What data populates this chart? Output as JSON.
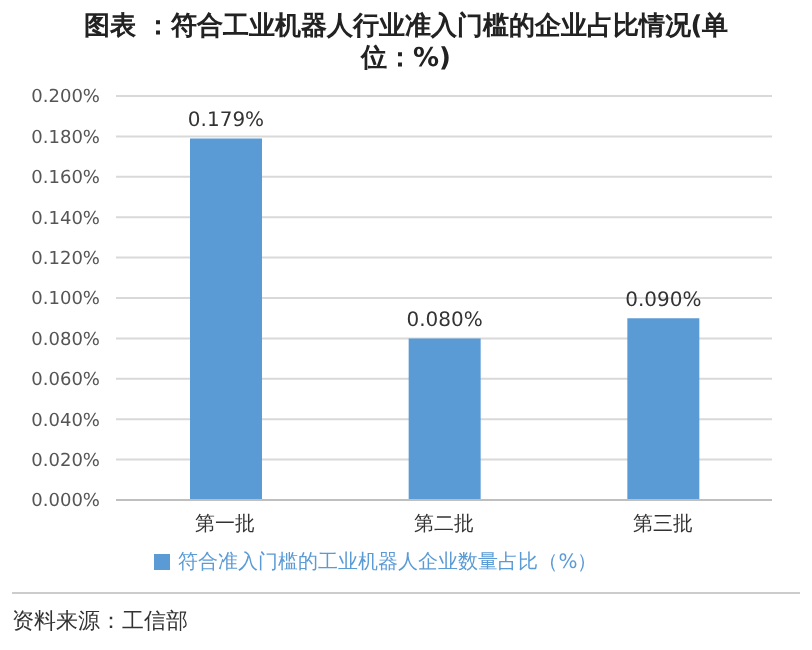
{
  "chart_data": {
    "type": "bar",
    "title": "图表 ：符合工业机器人行业准入门槛的企业占比情况(单位：%)",
    "categories": [
      "第一批",
      "第二批",
      "第三批"
    ],
    "series": [
      {
        "name": "符合准入门槛的工业机器人企业数量占比（%）",
        "color": "#5b9bd5",
        "values": [
          0.179,
          0.08,
          0.09
        ],
        "value_labels": [
          "0.179%",
          "0.080%",
          "0.090%"
        ]
      }
    ],
    "ylim": [
      0,
      0.2
    ],
    "yticks": [
      {
        "value": 0,
        "label": "0.000%"
      },
      {
        "value": 0.02,
        "label": "0.020%"
      },
      {
        "value": 0.04,
        "label": "0.040%"
      },
      {
        "value": 0.06,
        "label": "0.060%"
      },
      {
        "value": 0.08,
        "label": "0.080%"
      },
      {
        "value": 0.1,
        "label": "0.100%"
      },
      {
        "value": 0.12,
        "label": "0.120%"
      },
      {
        "value": 0.14,
        "label": "0.140%"
      },
      {
        "value": 0.16,
        "label": "0.160%"
      },
      {
        "value": 0.18,
        "label": "0.180%"
      },
      {
        "value": 0.2,
        "label": "0.200%"
      }
    ],
    "grid": "y",
    "legend": "bottom",
    "annotations": [
      "资料来源：工信部"
    ]
  }
}
